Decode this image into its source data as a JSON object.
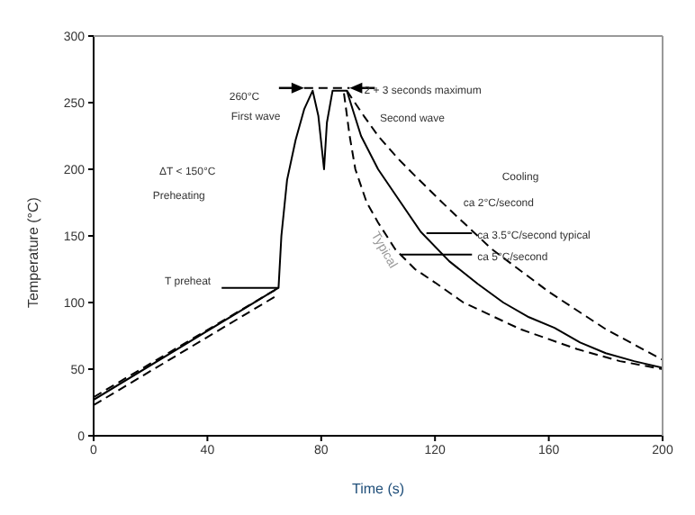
{
  "chart_data": {
    "type": "line",
    "xlabel": "Time  (s)",
    "ylabel": "Temperature (°C)",
    "xlim": [
      0,
      200
    ],
    "ylim": [
      0,
      300
    ],
    "xticks": [
      0,
      40,
      80,
      120,
      160,
      200
    ],
    "yticks": [
      0,
      50,
      100,
      150,
      200,
      250,
      300
    ],
    "marker": "none",
    "series": [
      {
        "color": "#000000",
        "line_style": "solid",
        "x": [
          0,
          65,
          66,
          68,
          71,
          74,
          77,
          79,
          81,
          82,
          84,
          89,
          94,
          100,
          107,
          115,
          125,
          135,
          144,
          153,
          162,
          171,
          180,
          190,
          200
        ],
        "values": [
          27,
          111,
          150,
          192,
          222,
          245,
          259,
          240,
          200,
          235,
          259,
          259,
          225,
          200,
          178,
          153,
          131,
          114,
          100,
          89,
          81,
          70,
          62,
          56,
          51
        ]
      },
      {
        "color": "#000000",
        "line_style": "dashed",
        "x": [
          0,
          65
        ],
        "values": [
          29,
          111
        ]
      },
      {
        "color": "#000000",
        "line_style": "dashed",
        "x": [
          0,
          65
        ],
        "values": [
          23,
          106
        ]
      },
      {
        "color": "#000000",
        "line_style": "dashed",
        "x": [
          89,
          95,
          100,
          107,
          113,
          125,
          140,
          160,
          180,
          200
        ],
        "values": [
          259,
          240,
          225,
          208,
          195,
          170,
          140,
          108,
          80,
          57
        ]
      },
      {
        "color": "#000000",
        "line_style": "dashed",
        "x": [
          88,
          90,
          92,
          96,
          100,
          106,
          113,
          120,
          130,
          150,
          170,
          185,
          200
        ],
        "values": [
          257,
          225,
          200,
          175,
          160,
          140,
          125,
          115,
          100,
          80,
          65,
          56,
          50
        ]
      },
      {
        "color": "#000000",
        "line_style": "solid",
        "x": [
          45,
          65
        ],
        "values": [
          111,
          111
        ]
      },
      {
        "color": "#000000",
        "line_style": "solid",
        "x": [
          117,
          133
        ],
        "values": [
          152,
          152
        ]
      },
      {
        "color": "#000000",
        "line_style": "solid",
        "x": [
          108,
          133
        ],
        "values": [
          136,
          136
        ]
      },
      {
        "color": "#000000",
        "line_style": "dashed",
        "x": [
          74,
          90
        ],
        "values": [
          261,
          261
        ]
      }
    ],
    "annotations": [
      "260°C",
      "First wave",
      {
        "text": "2 + 3 seconds maximum",
        "x": 90,
        "y": 261
      },
      "Second wave",
      "ΔT < 150°C",
      "Preheating",
      {
        "text": "T preheat",
        "x": 45,
        "y": 111
      },
      "Cooling",
      "ca 2°C/second",
      {
        "text": "ca 3.5°C/second typical",
        "x": 133,
        "y": 152
      },
      {
        "text": "ca 5°C/second",
        "x": 133,
        "y": 136
      },
      "Typical"
    ]
  }
}
